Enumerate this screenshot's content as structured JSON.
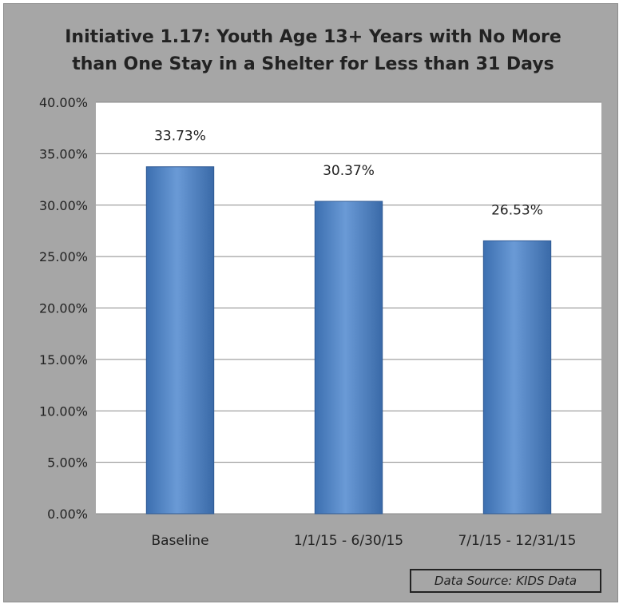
{
  "chart_data": {
    "type": "bar",
    "title_lines": [
      "Initiative 1.17: Youth Age 13+ Years with No More",
      "than One Stay in a Shelter for Less than 31 Days"
    ],
    "categories": [
      "Baseline",
      "1/1/15 - 6/30/15",
      "7/1/15 - 12/31/15"
    ],
    "values": [
      33.73,
      30.37,
      26.53
    ],
    "data_labels": [
      "33.73%",
      "30.37%",
      "26.53%"
    ],
    "ylim": [
      0,
      40
    ],
    "yticks": [
      0,
      5,
      10,
      15,
      20,
      25,
      30,
      35,
      40
    ],
    "ytick_labels": [
      "0.00%",
      "5.00%",
      "10.00%",
      "15.00%",
      "20.00%",
      "25.00%",
      "30.00%",
      "35.00%",
      "40.00%"
    ],
    "grid": true,
    "legend": "none",
    "bar_color": "#4f81bd",
    "plot_background": "#ffffff",
    "frame_background": "#a6a6a6"
  },
  "source_note": "Data Source: KIDS Data"
}
